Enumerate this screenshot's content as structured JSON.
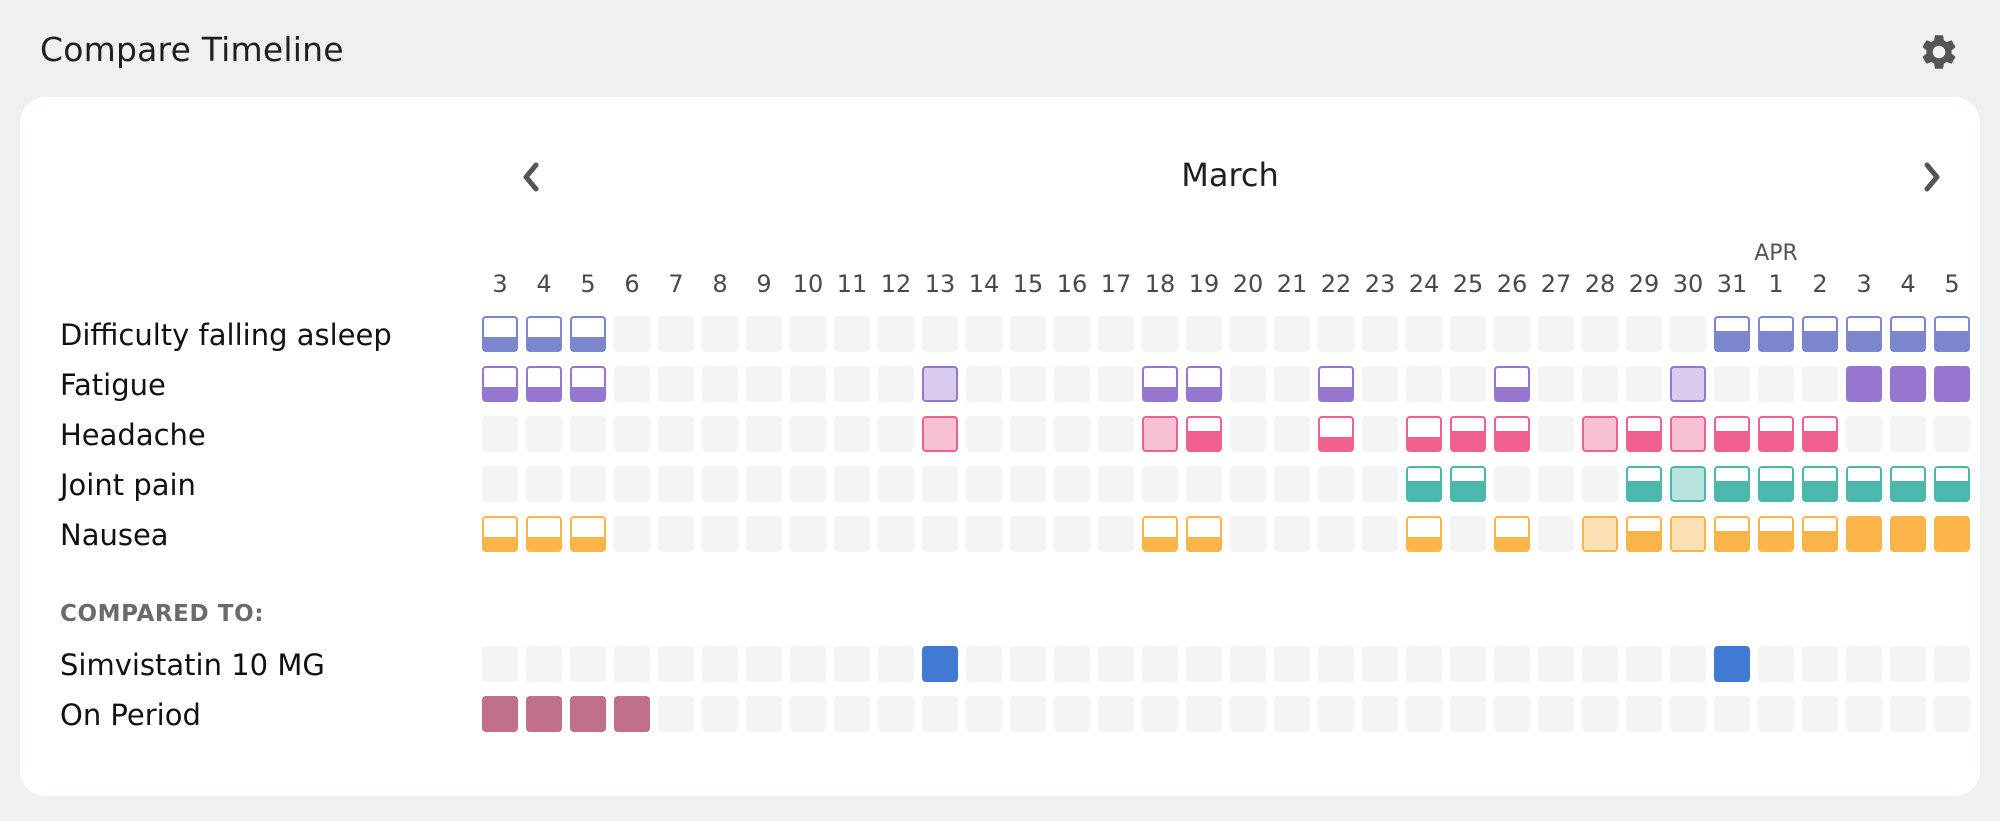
{
  "header": {
    "title": "Compare Timeline",
    "settings_icon": "gear-icon"
  },
  "calendar": {
    "month_title": "March",
    "prev_icon": "chevron-left-icon",
    "next_icon": "chevron-right-icon",
    "days": [
      "3",
      "4",
      "5",
      "6",
      "7",
      "8",
      "9",
      "10",
      "11",
      "12",
      "13",
      "14",
      "15",
      "16",
      "17",
      "18",
      "19",
      "20",
      "21",
      "22",
      "23",
      "24",
      "25",
      "26",
      "27",
      "28",
      "29",
      "30",
      "31",
      "1",
      "2",
      "3",
      "4",
      "5"
    ],
    "month_marker": {
      "text": "APR",
      "day_index": 29
    }
  },
  "symptoms": [
    {
      "name": "Difficulty falling asleep",
      "color": "#7b86cc",
      "light": "#d6d9f1",
      "values": [
        2,
        2,
        2,
        0,
        0,
        0,
        0,
        0,
        0,
        0,
        0,
        0,
        0,
        0,
        0,
        0,
        0,
        0,
        0,
        0,
        0,
        0,
        0,
        0,
        0,
        0,
        0,
        0,
        3,
        3,
        3,
        3,
        3,
        3
      ]
    },
    {
      "name": "Fatigue",
      "color": "#9676cf",
      "light": "#d9ccef",
      "values": [
        2,
        2,
        2,
        0,
        0,
        0,
        0,
        0,
        0,
        0,
        1,
        0,
        0,
        0,
        0,
        2,
        2,
        0,
        0,
        2,
        0,
        0,
        0,
        2,
        0,
        0,
        0,
        1,
        0,
        0,
        0,
        4,
        4,
        4
      ]
    },
    {
      "name": "Headache",
      "color": "#ef6290",
      "light": "#f8c0d3",
      "values": [
        0,
        0,
        0,
        0,
        0,
        0,
        0,
        0,
        0,
        0,
        1,
        0,
        0,
        0,
        0,
        1,
        3,
        0,
        0,
        2,
        0,
        2,
        3,
        3,
        0,
        1,
        3,
        1,
        3,
        3,
        3,
        0,
        0,
        0
      ]
    },
    {
      "name": "Joint pain",
      "color": "#4bb8ab",
      "light": "#b8e2dc",
      "values": [
        0,
        0,
        0,
        0,
        0,
        0,
        0,
        0,
        0,
        0,
        0,
        0,
        0,
        0,
        0,
        0,
        0,
        0,
        0,
        0,
        0,
        3,
        3,
        0,
        0,
        0,
        3,
        1,
        3,
        3,
        3,
        3,
        3,
        3
      ]
    },
    {
      "name": "Nausea",
      "color": "#fbb54a",
      "light": "#fde0b3",
      "values": [
        2,
        2,
        2,
        0,
        0,
        0,
        0,
        0,
        0,
        0,
        0,
        0,
        0,
        0,
        0,
        2,
        2,
        0,
        0,
        0,
        0,
        2,
        0,
        2,
        0,
        1,
        3,
        1,
        3,
        3,
        3,
        4,
        4,
        4
      ]
    }
  ],
  "compared": {
    "label": "COMPARED TO:",
    "rows": [
      {
        "name": "Simvistatin 10 MG",
        "color": "#4279d2",
        "values": [
          0,
          0,
          0,
          0,
          0,
          0,
          0,
          0,
          0,
          0,
          1,
          0,
          0,
          0,
          0,
          0,
          0,
          0,
          0,
          0,
          0,
          0,
          0,
          0,
          0,
          0,
          0,
          0,
          1,
          0,
          0,
          0,
          0,
          0
        ]
      },
      {
        "name": "On Period",
        "color": "#c1708a",
        "values": [
          1,
          1,
          1,
          1,
          0,
          0,
          0,
          0,
          0,
          0,
          0,
          0,
          0,
          0,
          0,
          0,
          0,
          0,
          0,
          0,
          0,
          0,
          0,
          0,
          0,
          0,
          0,
          0,
          0,
          0,
          0,
          0,
          0,
          0
        ]
      }
    ]
  }
}
